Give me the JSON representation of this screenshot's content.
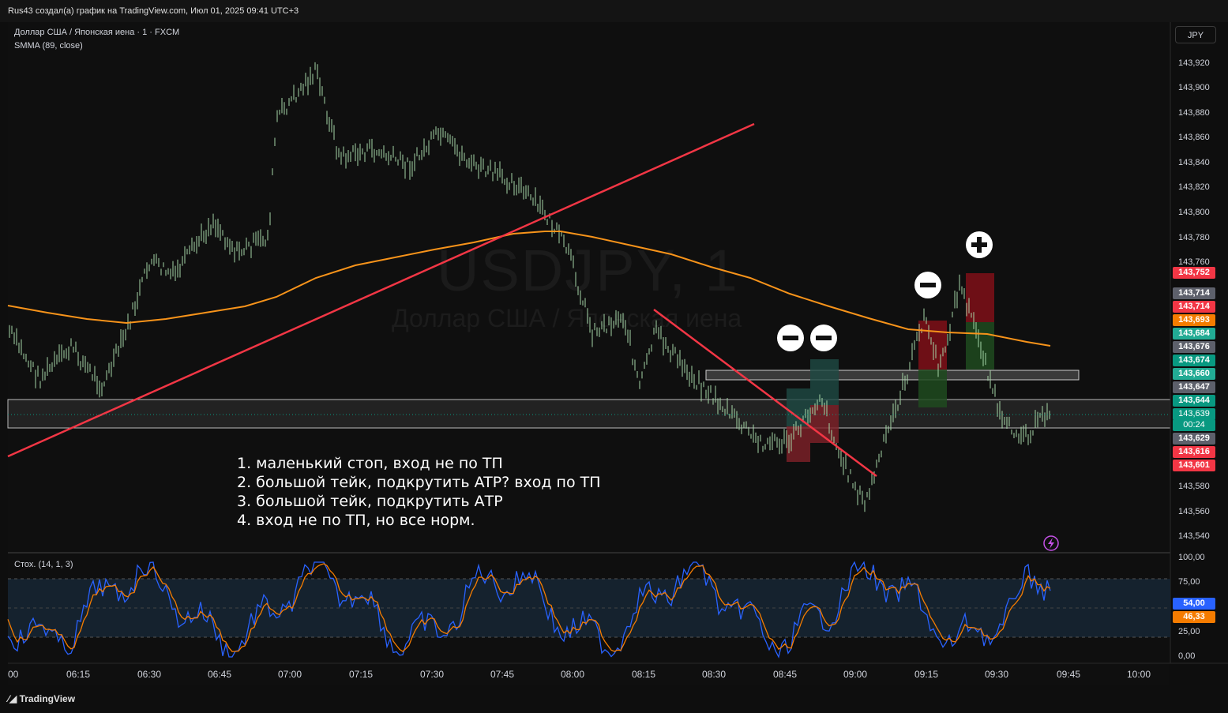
{
  "header": {
    "author_line": "Rus43 создал(а) график на TradingView.com, Июл 01, 2025 09:41 UTC+3"
  },
  "chart_header": {
    "symbol_line": "Доллар США / Японская иена · 1 · FXCM",
    "indicator_line": "SMMA (89, close)",
    "stoch_line": "Стох. (14, 1, 3)",
    "currency_button": "JPY"
  },
  "watermark": {
    "symbol": "USDJPY, 1",
    "name": "Доллар США / Японская иена"
  },
  "notes": [
    "1. маленький стоп, вход не по ТП",
    "2. большой тейк, подкрутить ATP? вход по ТП",
    "3. большой тейк, подкрутить АТР",
    "4. вход не по ТП, но все норм."
  ],
  "price_axis": [
    "143,920",
    "143,900",
    "143,880",
    "143,860",
    "143,840",
    "143,820",
    "143,800",
    "143,780",
    "143,760",
    "143,580",
    "143,560",
    "143,540"
  ],
  "price_tags": [
    {
      "value": "143,752",
      "color": "#f23645"
    },
    {
      "value": "143,714",
      "color": "#5d606b"
    },
    {
      "value": "143,714",
      "color": "#f23645"
    },
    {
      "value": "143,693",
      "color": "#f57c00"
    },
    {
      "value": "143,684",
      "color": "#22ab94"
    },
    {
      "value": "143,676",
      "color": "#5d606b"
    },
    {
      "value": "143,674",
      "color": "#089981"
    },
    {
      "value": "143,660",
      "color": "#22ab94"
    },
    {
      "value": "143,647",
      "color": "#5d606b"
    },
    {
      "value": "143,644",
      "color": "#089981"
    },
    {
      "value": "143,639",
      "color": "#089981"
    },
    {
      "value": "00:24",
      "color": "#089981"
    },
    {
      "value": "143,629",
      "color": "#5d606b"
    },
    {
      "value": "143,616",
      "color": "#f23645"
    },
    {
      "value": "143,601",
      "color": "#f23645"
    }
  ],
  "stoch_axis": [
    "100,00",
    "75,00",
    "25,00",
    "0,00"
  ],
  "stoch_tags": [
    {
      "value": "54,00",
      "color": "#2962ff"
    },
    {
      "value": "46,33",
      "color": "#f57c00"
    }
  ],
  "time_axis": [
    "00",
    "06:15",
    "06:30",
    "06:45",
    "07:00",
    "07:15",
    "07:30",
    "07:45",
    "08:00",
    "08:15",
    "08:30",
    "08:45",
    "09:00",
    "09:15",
    "09:30",
    "09:45",
    "10:00"
  ],
  "footer": {
    "brand": "TradingView"
  },
  "colors": {
    "smma": "#f7931a",
    "trendline": "#f23645",
    "candle": "#a5d6a7",
    "stoch_k": "#2962ff",
    "stoch_d": "#f57c00"
  },
  "chart_data": {
    "type": "line",
    "series": [
      {
        "name": "SMMA (89, close)",
        "x": [
          "06:00",
          "06:30",
          "07:00",
          "07:30",
          "07:50",
          "08:00",
          "08:30",
          "09:00",
          "09:15",
          "09:30",
          "09:41"
        ],
        "values": [
          143.692,
          143.684,
          143.7,
          143.771,
          143.784,
          143.783,
          143.74,
          143.717,
          143.698,
          143.69,
          143.684
        ]
      }
    ],
    "ylim": [
      143.53,
      143.93
    ]
  }
}
